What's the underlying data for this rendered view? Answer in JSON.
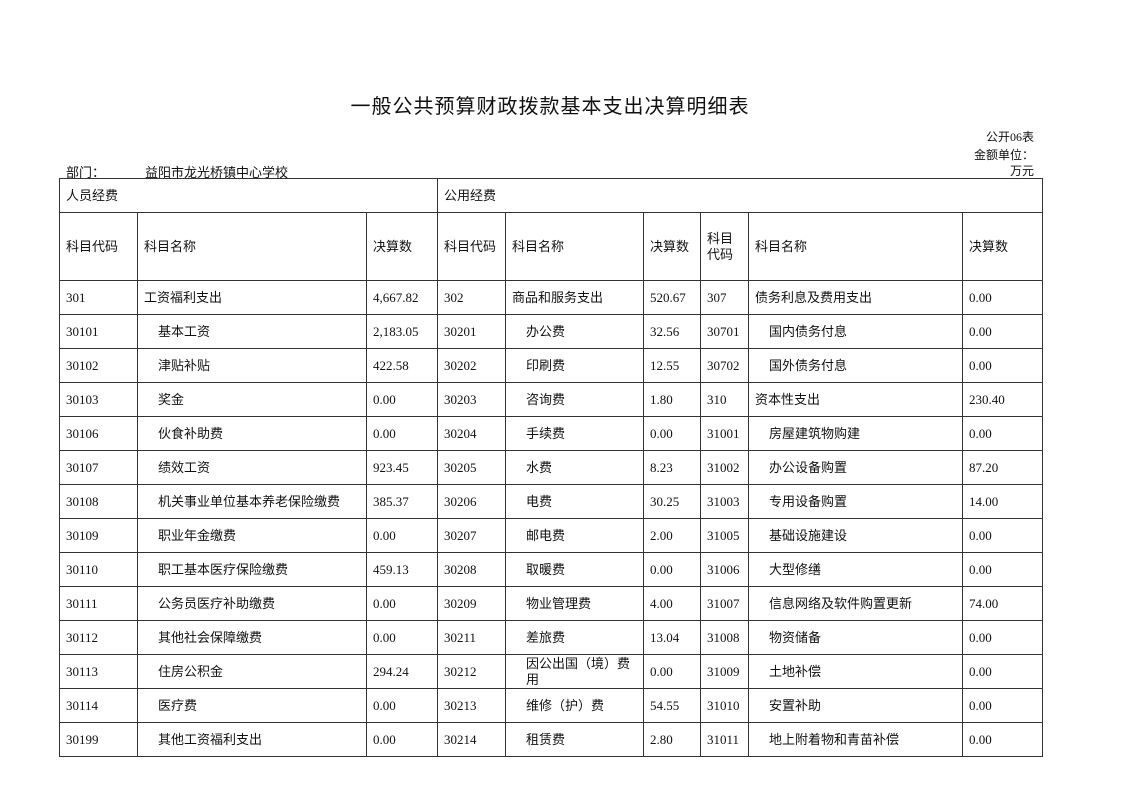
{
  "title": "一般公共预算财政拨款基本支出决算明细表",
  "form_no": "公开06表",
  "unit_label": "金额单位：",
  "unit_value": "万元",
  "department": {
    "label": "部门：",
    "name": "益阳市龙光桥镇中心学校"
  },
  "sections": {
    "personnel": "人员经费",
    "public": "公用经费"
  },
  "headers": [
    "科目代码",
    "科目名称",
    "决算数",
    "科目代码",
    "科目名称",
    "决算数",
    "科目代码",
    "科目名称",
    "决算数"
  ],
  "rows": [
    [
      [
        "301",
        "工资福利支出",
        "4,667.82"
      ],
      [
        "302",
        "商品和服务支出",
        "520.67"
      ],
      [
        "307",
        "债务利息及费用支出",
        "0.00"
      ]
    ],
    [
      [
        "30101",
        "基本工资",
        "2,183.05"
      ],
      [
        "30201",
        "办公费",
        "32.56"
      ],
      [
        "30701",
        "国内债务付息",
        "0.00"
      ]
    ],
    [
      [
        "30102",
        "津贴补贴",
        "422.58"
      ],
      [
        "30202",
        "印刷费",
        "12.55"
      ],
      [
        "30702",
        "国外债务付息",
        "0.00"
      ]
    ],
    [
      [
        "30103",
        "奖金",
        "0.00"
      ],
      [
        "30203",
        "咨询费",
        "1.80"
      ],
      [
        "310",
        "资本性支出",
        "230.40"
      ]
    ],
    [
      [
        "30106",
        "伙食补助费",
        "0.00"
      ],
      [
        "30204",
        "手续费",
        "0.00"
      ],
      [
        "31001",
        "房屋建筑物购建",
        "0.00"
      ]
    ],
    [
      [
        "30107",
        "绩效工资",
        "923.45"
      ],
      [
        "30205",
        "水费",
        "8.23"
      ],
      [
        "31002",
        "办公设备购置",
        "87.20"
      ]
    ],
    [
      [
        "30108",
        "机关事业单位基本养老保险缴费",
        "385.37"
      ],
      [
        "30206",
        "电费",
        "30.25"
      ],
      [
        "31003",
        "专用设备购置",
        "14.00"
      ]
    ],
    [
      [
        "30109",
        "职业年金缴费",
        "0.00"
      ],
      [
        "30207",
        "邮电费",
        "2.00"
      ],
      [
        "31005",
        "基础设施建设",
        "0.00"
      ]
    ],
    [
      [
        "30110",
        "职工基本医疗保险缴费",
        "459.13"
      ],
      [
        "30208",
        "取暖费",
        "0.00"
      ],
      [
        "31006",
        "大型修缮",
        "0.00"
      ]
    ],
    [
      [
        "30111",
        "公务员医疗补助缴费",
        "0.00"
      ],
      [
        "30209",
        "物业管理费",
        "4.00"
      ],
      [
        "31007",
        "信息网络及软件购置更新",
        "74.00"
      ]
    ],
    [
      [
        "30112",
        "其他社会保障缴费",
        "0.00"
      ],
      [
        "30211",
        "差旅费",
        "13.04"
      ],
      [
        "31008",
        "物资储备",
        "0.00"
      ]
    ],
    [
      [
        "30113",
        "住房公积金",
        "294.24"
      ],
      [
        "30212",
        "因公出国（境）费用",
        "0.00"
      ],
      [
        "31009",
        "土地补偿",
        "0.00"
      ]
    ],
    [
      [
        "30114",
        "医疗费",
        "0.00"
      ],
      [
        "30213",
        "维修（护）费",
        "54.55"
      ],
      [
        "31010",
        "安置补助",
        "0.00"
      ]
    ],
    [
      [
        "30199",
        "其他工资福利支出",
        "0.00"
      ],
      [
        "30214",
        "租赁费",
        "2.80"
      ],
      [
        "31011",
        "地上附着物和青苗补偿",
        "0.00"
      ]
    ]
  ]
}
